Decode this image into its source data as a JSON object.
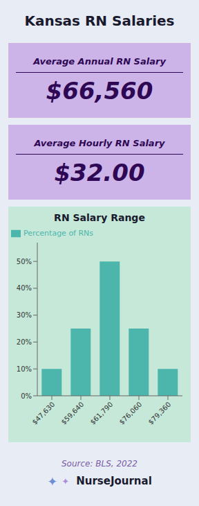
{
  "title": "Kansas RN Salaries",
  "annotations": [
    "Average Annual RN Salary",
    "$66,560",
    "Average Hourly RN Salary",
    "$32.00",
    "Source: BLS, 2022",
    "✦",
    "✦",
    "NurseJournal"
  ],
  "chart_data": {
    "type": "bar",
    "title": "RN Salary Range",
    "categories": [
      "$47,630",
      "$59,640",
      "$61,790",
      "$76,060",
      "$79,360"
    ],
    "series": [
      {
        "name": "Percentage of RNs",
        "color": "#4db6ac",
        "values": [
          10,
          25,
          50,
          25,
          10
        ]
      }
    ],
    "ylim": [
      0,
      57
    ],
    "yticks": [
      {
        "value": 0,
        "label": "0%"
      },
      {
        "value": 10,
        "label": "10%"
      },
      {
        "value": 20,
        "label": "20%"
      },
      {
        "value": 30,
        "label": "30%"
      },
      {
        "value": 40,
        "label": "40%"
      },
      {
        "value": 50,
        "label": "50%"
      }
    ],
    "grid": false,
    "legend": "upper left"
  }
}
